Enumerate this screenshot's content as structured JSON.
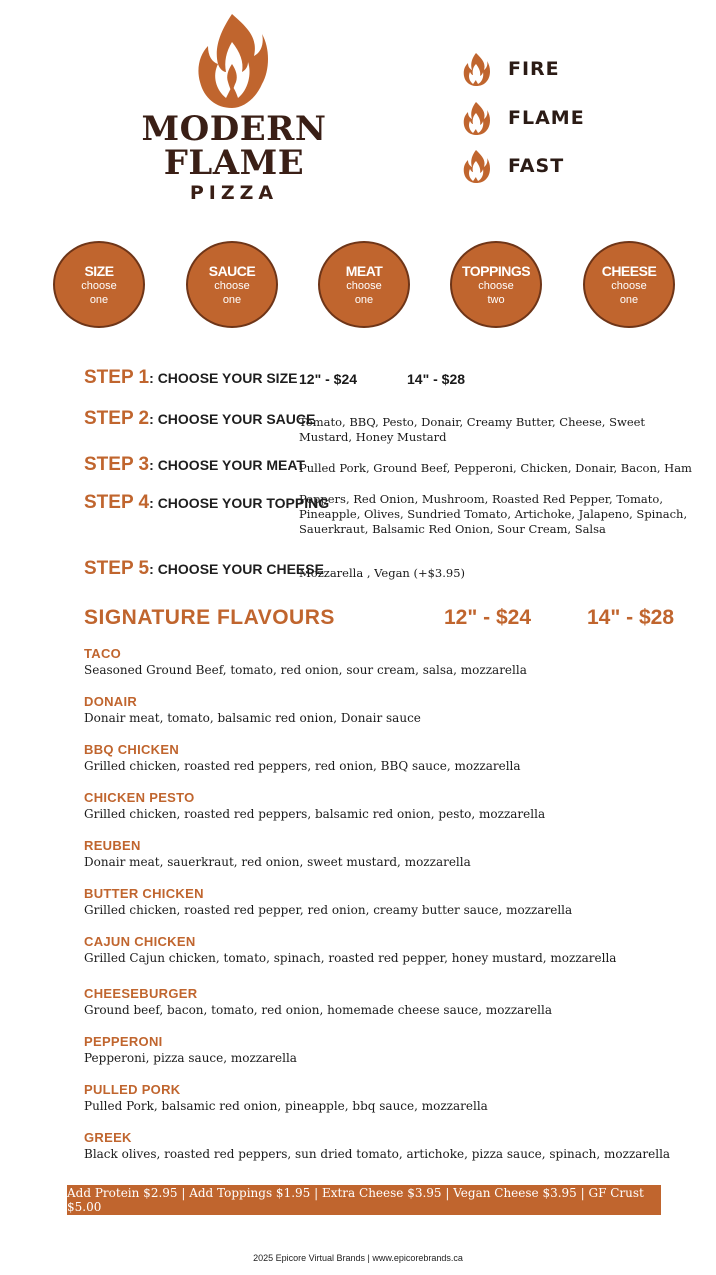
{
  "brand": {
    "line1": "MODERN",
    "line2": "FLAME",
    "line3": "PIZZA",
    "color_accent": "#c0652e",
    "color_dark": "#3a1f16"
  },
  "taglines": [
    "FIRE",
    "FLAME",
    "FAST"
  ],
  "circles": [
    {
      "title": "SIZE",
      "line1": "choose",
      "line2": "one"
    },
    {
      "title": "SAUCE",
      "line1": "choose",
      "line2": "one"
    },
    {
      "title": "MEAT",
      "line1": "choose",
      "line2": "one"
    },
    {
      "title": "TOPPINGS",
      "line1": "choose",
      "line2": "two"
    },
    {
      "title": "CHEESE",
      "line1": "choose",
      "line2": "one"
    }
  ],
  "steps": [
    {
      "num": "STEP 1",
      "title": ": CHOOSE YOUR SIZE",
      "text": ""
    },
    {
      "num": "STEP 2",
      "title": ": CHOOSE YOUR SAUCE",
      "text": "Tomato, BBQ, Pesto, Donair, Creamy Butter, Cheese, Sweet Mustard, Honey Mustard"
    },
    {
      "num": "STEP 3",
      "title": ": CHOOSE YOUR MEAT",
      "text": "Pulled Pork, Ground Beef, Pepperoni, Chicken, Donair, Bacon, Ham"
    },
    {
      "num": "STEP 4",
      "title": ": CHOOSE YOUR TOPPING",
      "text": "Peppers, Red Onion, Mushroom, Roasted Red Pepper, Tomato, Pineapple, Olives, Sundried Tomato, Artichoke, Jalapeno, Spinach, Sauerkraut, Balsamic Red Onion, Sour Cream, Salsa"
    },
    {
      "num": "STEP 5",
      "title": ": CHOOSE YOUR CHEESE",
      "text": "Mozzarella , Vegan (+$3.95)"
    }
  ],
  "size_prices": {
    "p12": "12\"  - $24",
    "p14": "14\" - $28"
  },
  "signature": {
    "title": "SIGNATURE FLAVOURS",
    "price12": "12\" - $24",
    "price14": "14\" - $28",
    "items": [
      {
        "name": "TACO",
        "desc": "Seasoned Ground Beef, tomato, red onion, sour cream, salsa, mozzarella"
      },
      {
        "name": "DONAIR",
        "desc": "Donair meat, tomato, balsamic red onion, Donair sauce"
      },
      {
        "name": "BBQ CHICKEN",
        "desc": "Grilled chicken, roasted red peppers, red onion, BBQ sauce, mozzarella"
      },
      {
        "name": "CHICKEN PESTO",
        "desc": "Grilled chicken, roasted red peppers, balsamic red onion, pesto, mozzarella"
      },
      {
        "name": "REUBEN",
        "desc": "Donair meat, sauerkraut, red onion, sweet mustard, mozzarella"
      },
      {
        "name": "BUTTER CHICKEN",
        "desc": "Grilled chicken, roasted red pepper, red onion, creamy butter sauce, mozzarella"
      },
      {
        "name": "CAJUN CHICKEN",
        "desc": "Grilled Cajun chicken, tomato, spinach, roasted red pepper, honey mustard, mozzarella"
      },
      {
        "name": "CHEESEBURGER",
        "desc": "Ground beef, bacon, tomato, red onion, homemade cheese sauce, mozzarella"
      },
      {
        "name": "PEPPERONI",
        "desc": "Pepperoni, pizza sauce, mozzarella"
      },
      {
        "name": "PULLED PORK",
        "desc": "Pulled Pork, balsamic red onion, pineapple, bbq sauce, mozzarella"
      },
      {
        "name": "GREEK",
        "desc": "Black olives, roasted red peppers, sun dried tomato, artichoke, pizza sauce, spinach, mozzarella"
      }
    ]
  },
  "addons": "Add Protein $2.95 | Add Toppings $1.95 | Extra Cheese $3.95 | Vegan Cheese $3.95 | GF Crust $5.00",
  "footer": "2025 Epicore Virtual Brands | www.epicorebrands.ca"
}
